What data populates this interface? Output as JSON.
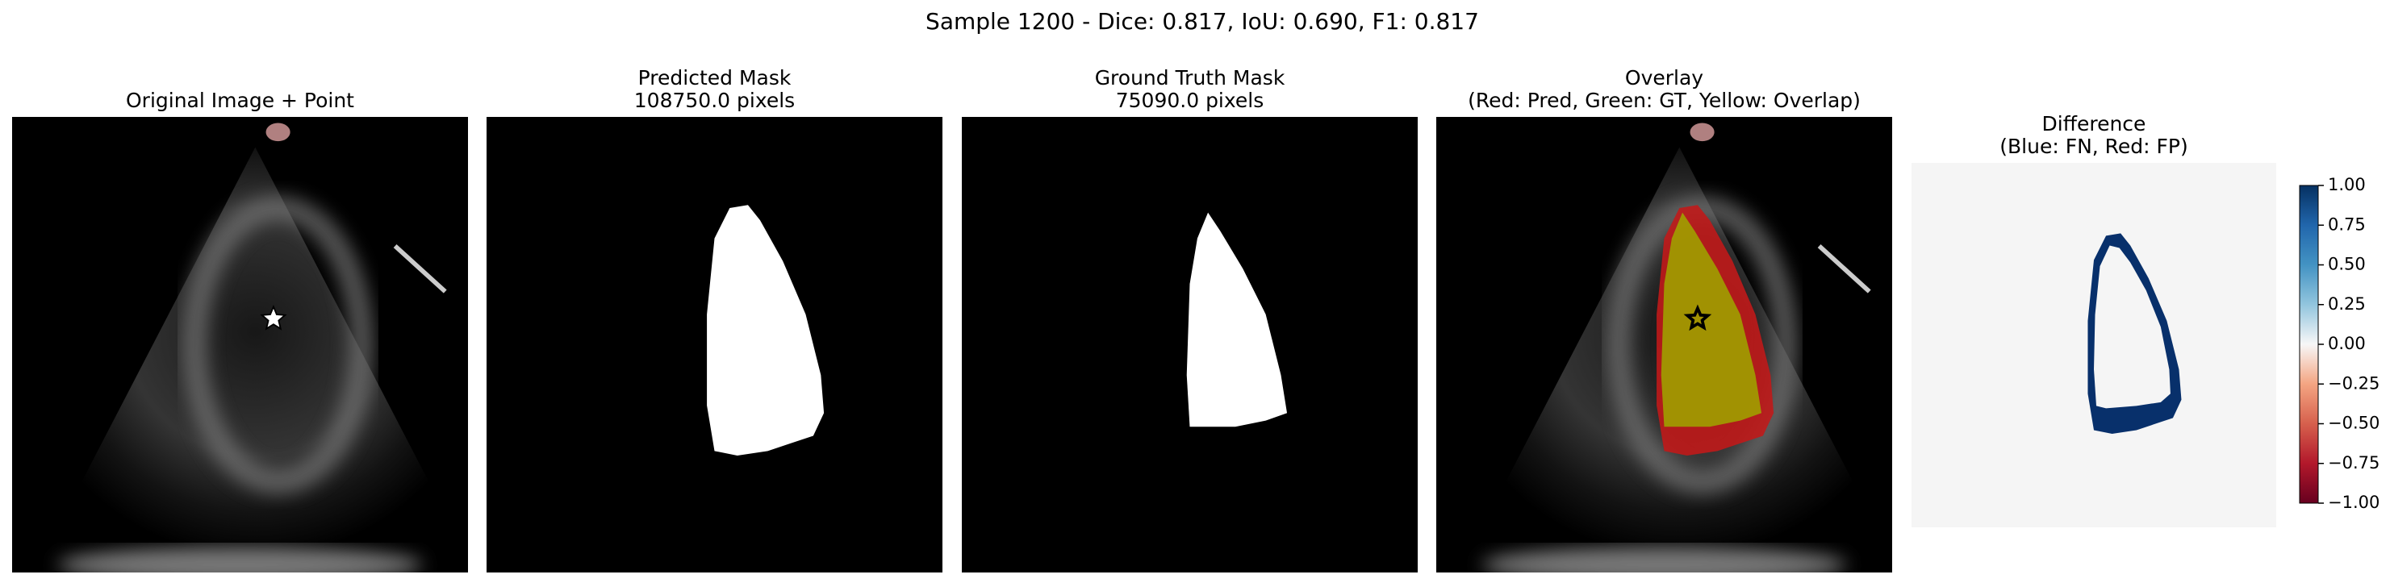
{
  "title": "Sample 1200 - Dice: 0.817, IoU: 0.690, F1: 0.817",
  "panels": [
    {
      "title": [
        "Original Image + Point"
      ]
    },
    {
      "title": [
        "Predicted Mask",
        "108750.0 pixels"
      ]
    },
    {
      "title": [
        "Ground Truth Mask",
        "75090.0 pixels"
      ]
    },
    {
      "title": [
        "Overlay",
        "(Red: Pred, Green: GT, Yellow: Overlap)"
      ]
    },
    {
      "title": [
        "Difference",
        "(Blue: FN, Red: FP)"
      ]
    }
  ],
  "colorbar": {
    "lim": [
      -1,
      1
    ],
    "ticks": [
      {
        "value": -1,
        "label": "−1.00"
      },
      {
        "value": -0.75,
        "label": "−0.75"
      },
      {
        "value": -0.5,
        "label": "−0.50"
      },
      {
        "value": -0.25,
        "label": "−0.25"
      },
      {
        "value": 0,
        "label": "0.00"
      },
      {
        "value": 0.25,
        "label": "0.25"
      },
      {
        "value": 0.5,
        "label": "0.50"
      },
      {
        "value": 0.75,
        "label": "0.75"
      },
      {
        "value": 1,
        "label": "1.00"
      }
    ]
  }
}
